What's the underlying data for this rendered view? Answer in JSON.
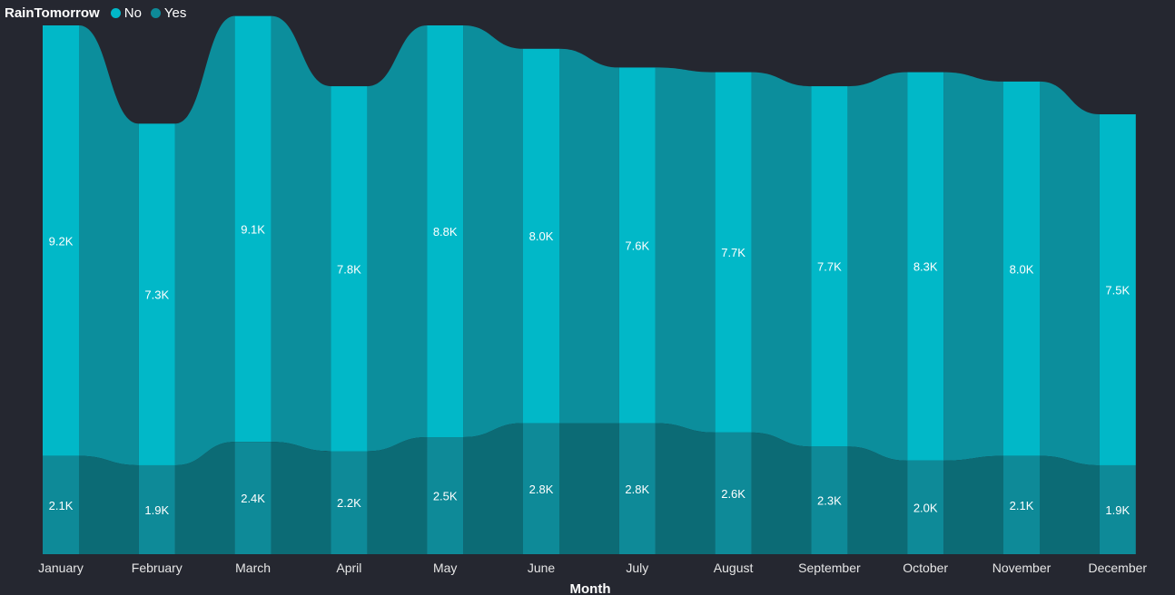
{
  "legend": {
    "title": "RainTomorrow",
    "items": [
      {
        "label": "No",
        "color": "#01B8C8"
      },
      {
        "label": "Yes",
        "color": "#0E8A98"
      }
    ]
  },
  "chart_data": {
    "type": "ribbon",
    "categories": [
      "January",
      "February",
      "March",
      "April",
      "May",
      "June",
      "July",
      "August",
      "September",
      "October",
      "November",
      "December"
    ],
    "series": [
      {
        "name": "Yes",
        "values": [
          2.1,
          1.9,
          2.4,
          2.2,
          2.5,
          2.8,
          2.8,
          2.6,
          2.3,
          2.0,
          2.1,
          1.9
        ],
        "labels": [
          "2.1K",
          "1.9K",
          "2.4K",
          "2.2K",
          "2.5K",
          "2.8K",
          "2.8K",
          "2.6K",
          "2.3K",
          "2.0K",
          "2.1K",
          "1.9K"
        ],
        "bar_color": "#0E8A98",
        "ribbon_color": "#0C6B75"
      },
      {
        "name": "No",
        "values": [
          9.2,
          7.3,
          9.1,
          7.8,
          8.8,
          8.0,
          7.6,
          7.7,
          7.7,
          8.3,
          8.0,
          7.5
        ],
        "labels": [
          "9.2K",
          "7.3K",
          "9.1K",
          "7.8K",
          "8.8K",
          "8.0K",
          "7.6K",
          "7.7K",
          "7.7K",
          "8.3K",
          "8.0K",
          "7.5K"
        ],
        "bar_color": "#01B8C8",
        "ribbon_color": "#0C8E9C"
      }
    ],
    "stacking": "stacked",
    "value_unit": "K",
    "xlabel": "Month",
    "ylabel": "",
    "ylim": [
      0,
      11.3
    ],
    "grid": false,
    "legend_position": "top-left"
  }
}
